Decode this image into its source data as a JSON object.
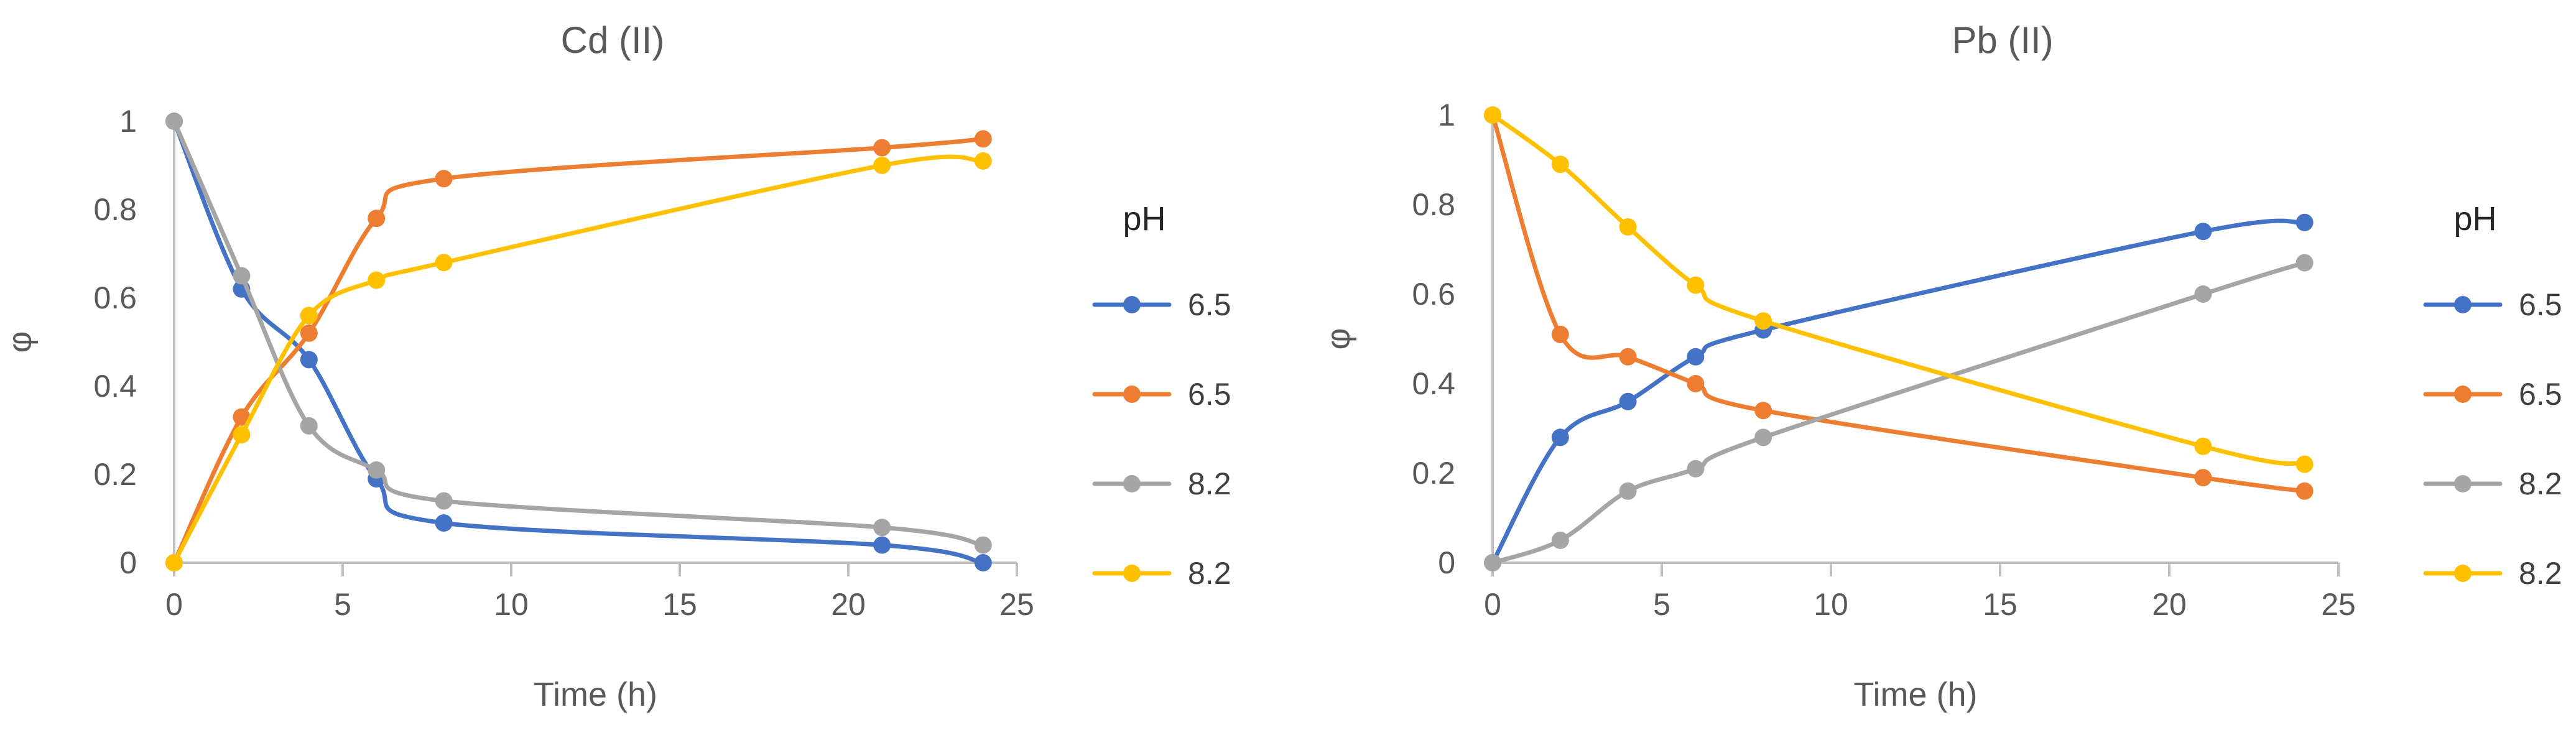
{
  "colors": {
    "series_blue": "#4472C4",
    "series_orange": "#ED7D31",
    "series_gray": "#A5A5A5",
    "series_yellow": "#FFC000",
    "axis": "#BFBFBF",
    "text": "#595959"
  },
  "chart_data": [
    {
      "type": "line",
      "title": "Cd (II)",
      "xlabel": "Time (h)",
      "ylabel": "φ",
      "xlim": [
        0,
        25
      ],
      "ylim": [
        0,
        1
      ],
      "x_ticks": [
        "0",
        "5",
        "10",
        "15",
        "20",
        "25"
      ],
      "y_ticks": [
        "0",
        "0.2",
        "0.4",
        "0.6",
        "0.8",
        "1"
      ],
      "grid": false,
      "legend_title": "pH",
      "legend_position": "right",
      "x": [
        0,
        2,
        4,
        6,
        8,
        21,
        24
      ],
      "series": [
        {
          "name": "6.5",
          "color": "#4472C4",
          "values": [
            1,
            0.62,
            0.46,
            0.19,
            0.09,
            0.04,
            0
          ]
        },
        {
          "name": "6.5",
          "color": "#ED7D31",
          "values": [
            0,
            0.33,
            0.52,
            0.78,
            0.87,
            0.94,
            0.96
          ]
        },
        {
          "name": "8.2",
          "color": "#A5A5A5",
          "values": [
            1,
            0.65,
            0.31,
            0.21,
            0.14,
            0.08,
            0.04
          ]
        },
        {
          "name": "8.2",
          "color": "#FFC000",
          "values": [
            0,
            0.29,
            0.56,
            0.64,
            0.68,
            0.9,
            0.91
          ]
        }
      ]
    },
    {
      "type": "line",
      "title": "Pb (II)",
      "xlabel": "Time (h)",
      "ylabel": "φ",
      "xlim": [
        0,
        25
      ],
      "ylim": [
        0,
        1
      ],
      "x_ticks": [
        "0",
        "5",
        "10",
        "15",
        "20",
        "25"
      ],
      "y_ticks": [
        "0",
        "0.2",
        "0.4",
        "0.6",
        "0.8",
        "1"
      ],
      "grid": false,
      "legend_title": "pH",
      "legend_position": "right",
      "x": [
        0,
        2,
        4,
        6,
        8,
        21,
        24
      ],
      "series": [
        {
          "name": "6.5",
          "color": "#4472C4",
          "values": [
            0,
            0.28,
            0.36,
            0.46,
            0.52,
            0.74,
            0.76
          ]
        },
        {
          "name": "6.5",
          "color": "#ED7D31",
          "values": [
            1,
            0.51,
            0.46,
            0.4,
            0.34,
            0.19,
            0.16
          ]
        },
        {
          "name": "8.2",
          "color": "#A5A5A5",
          "values": [
            0,
            0.05,
            0.16,
            0.21,
            0.28,
            0.6,
            0.67
          ]
        },
        {
          "name": "8.2",
          "color": "#FFC000",
          "values": [
            1,
            0.89,
            0.75,
            0.62,
            0.54,
            0.26,
            0.22
          ]
        }
      ]
    }
  ]
}
